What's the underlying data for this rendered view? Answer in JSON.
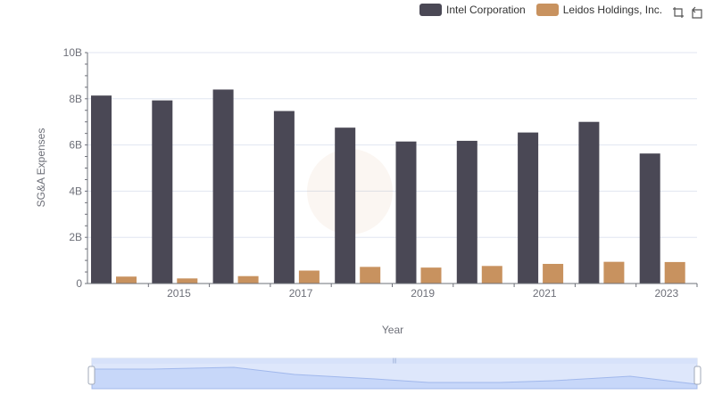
{
  "legend": {
    "items": [
      {
        "label": "Intel Corporation",
        "color": "#4a4855"
      },
      {
        "label": "Leidos Holdings, Inc.",
        "color": "#c8925f"
      }
    ]
  },
  "toolbox": {
    "icons": [
      "zoom-icon",
      "restore-icon"
    ]
  },
  "chart_data": {
    "type": "bar",
    "title": "",
    "xlabel": "Year",
    "ylabel": "SG&A Expenses",
    "categories": [
      "2014",
      "2015",
      "2016",
      "2017",
      "2018",
      "2019",
      "2020",
      "2021",
      "2022",
      "2023"
    ],
    "x_tick_labels": [
      "2015",
      "2017",
      "2019",
      "2021",
      "2023"
    ],
    "y_tick_labels": [
      "0",
      "2B",
      "4B",
      "6B",
      "8B",
      "10B"
    ],
    "ylim": [
      0,
      10000000000
    ],
    "grid": true,
    "legend_position": "top-right",
    "series": [
      {
        "name": "Intel Corporation",
        "color": "#4a4855",
        "values": [
          8140000000,
          7930000000,
          8400000000,
          7470000000,
          6750000000,
          6150000000,
          6180000000,
          6540000000,
          7000000000,
          5630000000
        ]
      },
      {
        "name": "Leidos Holdings, Inc.",
        "color": "#c8925f",
        "values": [
          300000000,
          220000000,
          320000000,
          560000000,
          720000000,
          690000000,
          760000000,
          850000000,
          940000000,
          930000000
        ]
      }
    ]
  }
}
